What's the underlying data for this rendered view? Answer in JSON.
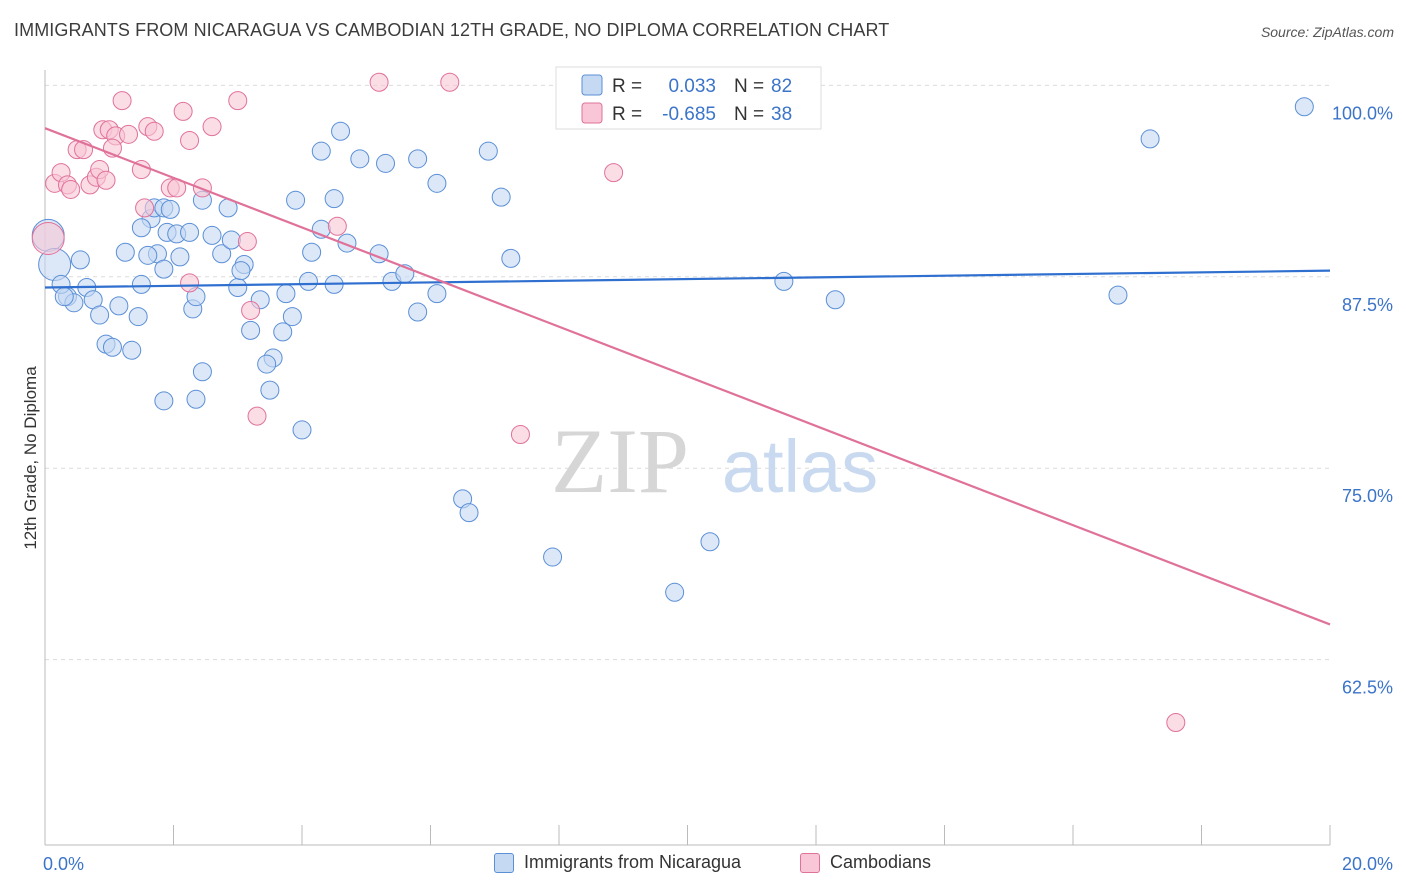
{
  "header": {
    "title": "IMMIGRANTS FROM NICARAGUA VS CAMBODIAN 12TH GRADE, NO DIPLOMA CORRELATION CHART",
    "source": "Source: ZipAtlas.com"
  },
  "watermark": {
    "zip": "ZIP",
    "atlas": "atlas"
  },
  "stats_legend": [
    {
      "r_label": "R =",
      "r_value": "0.033",
      "n_label": "N =",
      "n_value": "82"
    },
    {
      "r_label": "R =",
      "r_value": "-0.685",
      "n_label": "N =",
      "n_value": "38"
    }
  ],
  "chart_data": {
    "type": "scatter",
    "title": "IMMIGRANTS FROM NICARAGUA VS CAMBODIAN 12TH GRADE, NO DIPLOMA CORRELATION CHART",
    "xlabel": "",
    "ylabel": "12th Grade, No Diploma",
    "xlim": [
      0,
      20
    ],
    "ylim": [
      50.4,
      101
    ],
    "x_tick_labels": [
      "0.0%",
      "20.0%"
    ],
    "y_ticks": [
      62.5,
      75.0,
      87.5,
      100.0
    ],
    "y_tick_labels": [
      "62.5%",
      "75.0%",
      "87.5%",
      "100.0%"
    ],
    "grid": "horizontal dashed",
    "legend_position": "bottom",
    "colors": {
      "blue": "#5b8fd6",
      "blue_fill": "#c5d9f3",
      "pink": "#e0729a",
      "pink_fill": "#f8c6d6",
      "tick_text": "#3b74c9"
    },
    "series": [
      {
        "name": "Immigrants from Nicaragua",
        "color": "#5b8fd6",
        "trend": {
          "x": [
            0,
            20
          ],
          "y": [
            86.8,
            87.9
          ]
        },
        "points": [
          {
            "x": 0.05,
            "y": 90.2,
            "big": true
          },
          {
            "x": 0.15,
            "y": 88.3,
            "big": true
          },
          {
            "x": 0.35,
            "y": 86.2
          },
          {
            "x": 0.45,
            "y": 85.8
          },
          {
            "x": 0.55,
            "y": 88.6
          },
          {
            "x": 0.65,
            "y": 86.8
          },
          {
            "x": 0.75,
            "y": 86.0
          },
          {
            "x": 0.85,
            "y": 85.0
          },
          {
            "x": 0.95,
            "y": 83.1
          },
          {
            "x": 1.05,
            "y": 82.9
          },
          {
            "x": 1.15,
            "y": 85.6
          },
          {
            "x": 1.25,
            "y": 89.1
          },
          {
            "x": 1.45,
            "y": 84.9
          },
          {
            "x": 1.35,
            "y": 82.7
          },
          {
            "x": 1.5,
            "y": 87.0
          },
          {
            "x": 1.75,
            "y": 89.0
          },
          {
            "x": 1.65,
            "y": 91.3
          },
          {
            "x": 1.85,
            "y": 88.0
          },
          {
            "x": 1.9,
            "y": 90.4
          },
          {
            "x": 1.7,
            "y": 92.0
          },
          {
            "x": 2.05,
            "y": 90.3
          },
          {
            "x": 2.1,
            "y": 88.8
          },
          {
            "x": 2.25,
            "y": 90.4
          },
          {
            "x": 2.3,
            "y": 85.4
          },
          {
            "x": 2.35,
            "y": 86.2
          },
          {
            "x": 2.6,
            "y": 90.2
          },
          {
            "x": 2.75,
            "y": 89.0
          },
          {
            "x": 2.9,
            "y": 89.9
          },
          {
            "x": 3.1,
            "y": 88.3
          },
          {
            "x": 3.0,
            "y": 86.8
          },
          {
            "x": 2.45,
            "y": 81.3
          },
          {
            "x": 2.35,
            "y": 79.5
          },
          {
            "x": 2.85,
            "y": 92.0
          },
          {
            "x": 3.35,
            "y": 86.0
          },
          {
            "x": 3.55,
            "y": 82.2
          },
          {
            "x": 3.45,
            "y": 81.8
          },
          {
            "x": 3.75,
            "y": 86.4
          },
          {
            "x": 3.7,
            "y": 83.9
          },
          {
            "x": 3.85,
            "y": 84.9
          },
          {
            "x": 3.9,
            "y": 92.5
          },
          {
            "x": 4.15,
            "y": 89.1
          },
          {
            "x": 4.3,
            "y": 90.6
          },
          {
            "x": 4.1,
            "y": 87.2
          },
          {
            "x": 4.0,
            "y": 77.5
          },
          {
            "x": 3.5,
            "y": 80.1
          },
          {
            "x": 1.85,
            "y": 79.4
          },
          {
            "x": 1.85,
            "y": 92.0
          },
          {
            "x": 1.5,
            "y": 90.7
          },
          {
            "x": 4.5,
            "y": 87.0
          },
          {
            "x": 4.7,
            "y": 89.7
          },
          {
            "x": 4.9,
            "y": 95.2
          },
          {
            "x": 5.2,
            "y": 89.0
          },
          {
            "x": 5.4,
            "y": 87.2
          },
          {
            "x": 5.6,
            "y": 87.7
          },
          {
            "x": 5.8,
            "y": 85.2
          },
          {
            "x": 6.1,
            "y": 86.4
          },
          {
            "x": 6.5,
            "y": 73.0
          },
          {
            "x": 6.6,
            "y": 72.1
          },
          {
            "x": 6.9,
            "y": 95.7
          },
          {
            "x": 7.1,
            "y": 92.7
          },
          {
            "x": 5.3,
            "y": 94.9
          },
          {
            "x": 4.5,
            "y": 92.6
          },
          {
            "x": 4.6,
            "y": 97.0
          },
          {
            "x": 4.3,
            "y": 95.7
          },
          {
            "x": 5.8,
            "y": 95.2
          },
          {
            "x": 6.1,
            "y": 93.6
          },
          {
            "x": 7.25,
            "y": 88.7
          },
          {
            "x": 7.9,
            "y": 69.2
          },
          {
            "x": 9.8,
            "y": 66.9
          },
          {
            "x": 10.35,
            "y": 70.2
          },
          {
            "x": 11.5,
            "y": 87.2
          },
          {
            "x": 12.3,
            "y": 86.0
          },
          {
            "x": 16.7,
            "y": 86.3
          },
          {
            "x": 17.2,
            "y": 96.5
          },
          {
            "x": 19.6,
            "y": 98.6
          },
          {
            "x": 3.05,
            "y": 87.9
          },
          {
            "x": 2.45,
            "y": 92.5
          },
          {
            "x": 1.95,
            "y": 91.9
          },
          {
            "x": 0.25,
            "y": 87.0
          },
          {
            "x": 0.3,
            "y": 86.2
          },
          {
            "x": 1.6,
            "y": 88.9
          },
          {
            "x": 3.2,
            "y": 84.0
          }
        ]
      },
      {
        "name": "Cambodians",
        "color": "#e0729a",
        "trend": {
          "x": [
            0,
            20
          ],
          "y": [
            97.2,
            64.8
          ]
        },
        "points": [
          {
            "x": 0.05,
            "y": 90.0,
            "big": true
          },
          {
            "x": 0.15,
            "y": 93.6
          },
          {
            "x": 0.25,
            "y": 94.3
          },
          {
            "x": 0.35,
            "y": 93.5
          },
          {
            "x": 0.4,
            "y": 93.2
          },
          {
            "x": 0.5,
            "y": 95.8
          },
          {
            "x": 0.6,
            "y": 95.8
          },
          {
            "x": 0.7,
            "y": 93.5
          },
          {
            "x": 0.8,
            "y": 94.0
          },
          {
            "x": 0.85,
            "y": 94.5
          },
          {
            "x": 0.9,
            "y": 97.1
          },
          {
            "x": 1.0,
            "y": 97.1
          },
          {
            "x": 1.1,
            "y": 96.7
          },
          {
            "x": 1.05,
            "y": 95.9
          },
          {
            "x": 1.2,
            "y": 99.0
          },
          {
            "x": 1.3,
            "y": 96.8
          },
          {
            "x": 1.5,
            "y": 94.5
          },
          {
            "x": 1.6,
            "y": 97.3
          },
          {
            "x": 1.7,
            "y": 97.0
          },
          {
            "x": 1.55,
            "y": 92.0
          },
          {
            "x": 1.95,
            "y": 93.3
          },
          {
            "x": 2.05,
            "y": 93.3
          },
          {
            "x": 2.15,
            "y": 98.3
          },
          {
            "x": 2.25,
            "y": 96.4
          },
          {
            "x": 2.45,
            "y": 93.3
          },
          {
            "x": 2.6,
            "y": 97.3
          },
          {
            "x": 3.0,
            "y": 99.0
          },
          {
            "x": 3.15,
            "y": 89.8
          },
          {
            "x": 3.3,
            "y": 78.4
          },
          {
            "x": 3.2,
            "y": 85.3
          },
          {
            "x": 4.55,
            "y": 90.8
          },
          {
            "x": 5.2,
            "y": 100.2
          },
          {
            "x": 6.3,
            "y": 100.2
          },
          {
            "x": 7.4,
            "y": 77.2
          },
          {
            "x": 8.85,
            "y": 94.3
          },
          {
            "x": 2.25,
            "y": 87.1
          },
          {
            "x": 0.95,
            "y": 93.8
          },
          {
            "x": 17.6,
            "y": 58.4
          }
        ]
      }
    ]
  },
  "legend": {
    "items": [
      {
        "label": "Immigrants from Nicaragua"
      },
      {
        "label": "Cambodians"
      }
    ]
  }
}
